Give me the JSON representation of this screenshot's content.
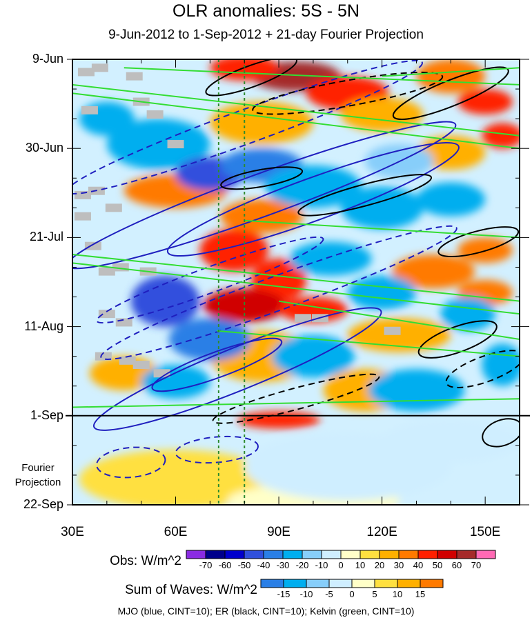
{
  "chart_data": {
    "type": "heatmap",
    "title": "OLR anomalies: 5S - 5N",
    "subtitle": "9-Jun-2012 to 1-Sep-2012 + 21-day Fourier Projection",
    "x_ticks": [
      "30E",
      "60E",
      "90E",
      "120E",
      "150E"
    ],
    "x_tick_values": [
      30,
      60,
      90,
      120,
      150
    ],
    "xlim": [
      30,
      160
    ],
    "y_ticks": [
      "9-Jun",
      "30-Jun",
      "21-Jul",
      "11-Aug",
      "1-Sep",
      "22-Sep"
    ],
    "y_tick_days": [
      0,
      21,
      42,
      63,
      84,
      105
    ],
    "ylim_days": [
      0,
      105
    ],
    "y_direction": "time increases downward",
    "forecast_line_day": 84,
    "projection_label_lines": [
      "Fourier",
      "Projection"
    ],
    "reference_lon_lines": [
      72.5,
      80
    ],
    "obs_colorbar": {
      "label": "Obs: W/m^2",
      "levels": [
        "-70",
        "-60",
        "-50",
        "-40",
        "-30",
        "-20",
        "-10",
        "0",
        "10",
        "20",
        "30",
        "40",
        "50",
        "60",
        "70"
      ],
      "colors": [
        "#8a2be2",
        "#00008b",
        "#0000cd",
        "#3050dd",
        "#2a7fe6",
        "#00aeef",
        "#87cefa",
        "#cfeeff",
        "#ffffc8",
        "#ffe040",
        "#ffb000",
        "#ff7a00",
        "#ff2000",
        "#d00000",
        "#a52a2a",
        "#ff69b4"
      ]
    },
    "waves_colorbar": {
      "label": "Sum of Waves: W/m^2",
      "levels": [
        "-15",
        "-10",
        "-5",
        "0",
        "5",
        "10",
        "15"
      ],
      "colors": [
        "#2a7fe6",
        "#00aeef",
        "#87cefa",
        "#cfeeff",
        "#ffffc8",
        "#ffe040",
        "#ffb000",
        "#ff7a00"
      ]
    },
    "contours": {
      "caption": "MJO (blue, CINT=10); ER (black, CINT=10); Kelvin (green, CINT=10)",
      "colors": {
        "MJO": "#1f1fbf",
        "ER": "#000000",
        "Kelvin": "#33dd33"
      }
    },
    "anomaly_features": [
      {
        "kind": "pos",
        "lon": 95,
        "day": 4,
        "rlon": 13,
        "rday": 3.5,
        "val": 60
      },
      {
        "kind": "pos",
        "lon": 80,
        "day": 2,
        "rlon": 10,
        "rday": 3,
        "val": 40
      },
      {
        "kind": "pos",
        "lon": 110,
        "day": 8,
        "rlon": 12,
        "rday": 4,
        "val": 45
      },
      {
        "kind": "pos",
        "lon": 140,
        "day": 4,
        "rlon": 10,
        "rday": 4,
        "val": 35
      },
      {
        "kind": "pos",
        "lon": 150,
        "day": 10,
        "rlon": 8,
        "rday": 3,
        "val": 40
      },
      {
        "kind": "pos",
        "lon": 155,
        "day": 18,
        "rlon": 6,
        "rday": 3,
        "val": 40
      },
      {
        "kind": "pos",
        "lon": 120,
        "day": 13,
        "rlon": 12,
        "rday": 4,
        "val": 25
      },
      {
        "kind": "pos",
        "lon": 85,
        "day": 15,
        "rlon": 15,
        "rday": 5,
        "val": 25
      },
      {
        "kind": "pos",
        "lon": 140,
        "day": 22,
        "rlon": 10,
        "rday": 4,
        "val": 20
      },
      {
        "kind": "pos",
        "lon": 60,
        "day": 31,
        "rlon": 15,
        "rday": 4,
        "val": 30
      },
      {
        "kind": "pos",
        "lon": 85,
        "day": 37,
        "rlon": 12,
        "rday": 4,
        "val": 30
      },
      {
        "kind": "pos",
        "lon": 77,
        "day": 45,
        "rlon": 10,
        "rday": 5,
        "val": 45
      },
      {
        "kind": "pos",
        "lon": 90,
        "day": 52,
        "rlon": 8,
        "rday": 5,
        "val": 45
      },
      {
        "kind": "pos",
        "lon": 80,
        "day": 58,
        "rlon": 12,
        "rday": 4,
        "val": 55
      },
      {
        "kind": "pos",
        "lon": 100,
        "day": 59,
        "rlon": 10,
        "rday": 3,
        "val": 40
      },
      {
        "kind": "pos",
        "lon": 135,
        "day": 50,
        "rlon": 12,
        "rday": 4,
        "val": 30
      },
      {
        "kind": "pos",
        "lon": 150,
        "day": 55,
        "rlon": 8,
        "rday": 3,
        "val": 35
      },
      {
        "kind": "pos",
        "lon": 150,
        "day": 45,
        "rlon": 8,
        "rday": 3,
        "val": 30
      },
      {
        "kind": "pos",
        "lon": 125,
        "day": 65,
        "rlon": 15,
        "rday": 4,
        "val": 25
      },
      {
        "kind": "pos",
        "lon": 85,
        "day": 70,
        "rlon": 15,
        "rday": 6,
        "val": 25
      },
      {
        "kind": "pos",
        "lon": 115,
        "day": 78,
        "rlon": 12,
        "rday": 5,
        "val": 20
      },
      {
        "kind": "pos",
        "lon": 90,
        "day": 85,
        "rlon": 12,
        "rday": 2,
        "val": 40
      },
      {
        "kind": "pos",
        "lon": 45,
        "day": 74,
        "rlon": 10,
        "rday": 4,
        "val": 20
      },
      {
        "kind": "pos",
        "lon": 60,
        "day": 99,
        "rlon": 28,
        "rday": 7,
        "val": 12
      },
      {
        "kind": "pos",
        "lon": 100,
        "day": 104,
        "rlon": 25,
        "rday": 4,
        "val": 6
      },
      {
        "kind": "neg",
        "lon": 55,
        "day": 20,
        "rlon": 15,
        "rday": 6,
        "val": -30
      },
      {
        "kind": "neg",
        "lon": 40,
        "day": 14,
        "rlon": 8,
        "rday": 4,
        "val": -25
      },
      {
        "kind": "neg",
        "lon": 70,
        "day": 27,
        "rlon": 10,
        "rday": 4,
        "val": -45
      },
      {
        "kind": "neg",
        "lon": 85,
        "day": 25,
        "rlon": 12,
        "rday": 4,
        "val": -35
      },
      {
        "kind": "neg",
        "lon": 100,
        "day": 30,
        "rlon": 14,
        "rday": 5,
        "val": -30
      },
      {
        "kind": "neg",
        "lon": 120,
        "day": 35,
        "rlon": 12,
        "rday": 5,
        "val": -30
      },
      {
        "kind": "neg",
        "lon": 140,
        "day": 33,
        "rlon": 10,
        "rday": 4,
        "val": -25
      },
      {
        "kind": "neg",
        "lon": 125,
        "day": 24,
        "rlon": 10,
        "rday": 4,
        "val": -20
      },
      {
        "kind": "neg",
        "lon": 57,
        "day": 57,
        "rlon": 10,
        "rday": 6,
        "val": -45
      },
      {
        "kind": "neg",
        "lon": 70,
        "day": 66,
        "rlon": 12,
        "rday": 5,
        "val": -35
      },
      {
        "kind": "neg",
        "lon": 105,
        "day": 47,
        "rlon": 12,
        "rday": 4,
        "val": -25
      },
      {
        "kind": "neg",
        "lon": 120,
        "day": 55,
        "rlon": 10,
        "rday": 4,
        "val": -25
      },
      {
        "kind": "neg",
        "lon": 145,
        "day": 60,
        "rlon": 8,
        "rday": 4,
        "val": -30
      },
      {
        "kind": "neg",
        "lon": 100,
        "day": 70,
        "rlon": 12,
        "rday": 5,
        "val": -30
      },
      {
        "kind": "neg",
        "lon": 130,
        "day": 78,
        "rlon": 14,
        "rday": 5,
        "val": -25
      },
      {
        "kind": "neg",
        "lon": 155,
        "day": 72,
        "rlon": 6,
        "rday": 5,
        "val": -30
      },
      {
        "kind": "neg",
        "lon": 60,
        "day": 76,
        "rlon": 10,
        "rday": 4,
        "val": -25
      },
      {
        "kind": "neg",
        "lon": 110,
        "day": 96,
        "rlon": 30,
        "rday": 8,
        "val": -8
      },
      {
        "kind": "neg",
        "lon": 140,
        "day": 90,
        "rlon": 20,
        "rday": 5,
        "val": -6
      }
    ],
    "missing_data_cells": [
      {
        "lon": 34,
        "day": 3
      },
      {
        "lon": 38,
        "day": 2
      },
      {
        "lon": 48,
        "day": 4
      },
      {
        "lon": 35,
        "day": 12
      },
      {
        "lon": 50,
        "day": 10
      },
      {
        "lon": 54,
        "day": 13
      },
      {
        "lon": 60,
        "day": 20
      },
      {
        "lon": 37,
        "day": 31
      },
      {
        "lon": 33,
        "day": 37
      },
      {
        "lon": 36,
        "day": 44
      },
      {
        "lon": 44,
        "day": 49
      },
      {
        "lon": 40,
        "day": 50
      },
      {
        "lon": 52,
        "day": 50
      },
      {
        "lon": 40,
        "day": 60
      },
      {
        "lon": 45,
        "day": 62
      },
      {
        "lon": 39,
        "day": 70
      },
      {
        "lon": 46,
        "day": 71
      },
      {
        "lon": 50,
        "day": 72
      },
      {
        "lon": 56,
        "day": 74
      },
      {
        "lon": 33,
        "day": 32
      },
      {
        "lon": 42,
        "day": 35
      },
      {
        "lon": 97,
        "day": 61
      },
      {
        "lon": 102,
        "day": 61
      },
      {
        "lon": 123,
        "day": 64
      }
    ],
    "mjo_contours": [
      {
        "lon": 85,
        "day": 32,
        "rlon": 60,
        "rday": 5,
        "angle": -20,
        "dash": false
      },
      {
        "lon": 100,
        "day": 33,
        "rlon": 45,
        "rday": 5,
        "angle": -20,
        "dash": false
      },
      {
        "lon": 78,
        "day": 73,
        "rlon": 45,
        "rday": 5,
        "angle": -22,
        "dash": false
      },
      {
        "lon": 72,
        "day": 72,
        "rlon": 20,
        "rday": 3,
        "angle": -20,
        "dash": false
      },
      {
        "lon": 80,
        "day": 16,
        "rlon": 55,
        "rday": 4,
        "angle": -20,
        "dash": true
      },
      {
        "lon": 90,
        "day": 55,
        "rlon": 55,
        "rday": 4,
        "angle": -20,
        "dash": true
      },
      {
        "lon": 70,
        "day": 52,
        "rlon": 35,
        "rday": 3,
        "angle": -20,
        "dash": true
      },
      {
        "lon": 47,
        "day": 95,
        "rlon": 10,
        "rday": 3.5,
        "angle": -5,
        "dash": true
      },
      {
        "lon": 72,
        "day": 92,
        "rlon": 12,
        "rday": 3,
        "angle": -5,
        "dash": true
      }
    ],
    "er_contours": [
      {
        "lon": 110,
        "day": 8,
        "rlon": 28,
        "rday": 3,
        "angle": -10,
        "dash": true
      },
      {
        "lon": 82,
        "day": 4,
        "rlon": 14,
        "rday": 2.5,
        "angle": -20,
        "dash": false
      },
      {
        "lon": 140,
        "day": 8,
        "rlon": 18,
        "rday": 3,
        "angle": -22,
        "dash": false
      },
      {
        "lon": 115,
        "day": 32,
        "rlon": 20,
        "rday": 2.5,
        "angle": -15,
        "dash": false
      },
      {
        "lon": 148,
        "day": 43,
        "rlon": 12,
        "rday": 2.5,
        "angle": -15,
        "dash": false
      },
      {
        "lon": 142,
        "day": 66,
        "rlon": 12,
        "rday": 3,
        "angle": -20,
        "dash": false
      },
      {
        "lon": 150,
        "day": 73,
        "rlon": 12,
        "rday": 3,
        "angle": -20,
        "dash": true
      },
      {
        "lon": 95,
        "day": 80,
        "rlon": 25,
        "rday": 2.5,
        "angle": -15,
        "dash": true
      },
      {
        "lon": 85,
        "day": 28,
        "rlon": 12,
        "rday": 2,
        "angle": -10,
        "dash": false
      },
      {
        "lon": 155,
        "day": 88,
        "rlon": 6,
        "rday": 3,
        "angle": -20,
        "dash": false
      }
    ],
    "kelvin_segments": [
      {
        "lon1": 30,
        "day1": 6,
        "lon2": 160,
        "day2": 18
      },
      {
        "lon1": 30,
        "day1": 8,
        "lon2": 160,
        "day2": 21
      },
      {
        "lon1": 45,
        "day1": 2,
        "lon2": 160,
        "day2": 6
      },
      {
        "lon1": 120,
        "day1": 4,
        "lon2": 160,
        "day2": 2
      },
      {
        "lon1": 30,
        "day1": 46,
        "lon2": 160,
        "day2": 57
      },
      {
        "lon1": 30,
        "day1": 48,
        "lon2": 160,
        "day2": 60
      },
      {
        "lon1": 80,
        "day1": 38,
        "lon2": 160,
        "day2": 42
      },
      {
        "lon1": 90,
        "day1": 57,
        "lon2": 160,
        "day2": 66
      },
      {
        "lon1": 72,
        "day1": 64,
        "lon2": 160,
        "day2": 70
      },
      {
        "lon1": 30,
        "day1": 82,
        "lon2": 160,
        "day2": 80
      }
    ]
  }
}
